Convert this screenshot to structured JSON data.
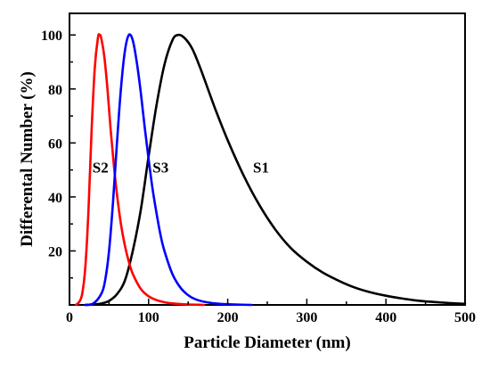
{
  "chart_data": {
    "type": "line",
    "xlabel": "Particle Diameter (nm)",
    "ylabel": "Differental Number (%)",
    "xlim": [
      0,
      500
    ],
    "ylim": [
      0,
      108
    ],
    "x_ticks": [
      0,
      100,
      200,
      300,
      400,
      500
    ],
    "y_ticks": [
      20,
      40,
      60,
      80,
      100
    ],
    "grid": false,
    "legend": "none",
    "series": [
      {
        "name": "S1",
        "color": "#000000",
        "x": [
          20,
          30,
          40,
          50,
          60,
          70,
          80,
          90,
          100,
          110,
          120,
          130,
          137,
          145,
          155,
          165,
          175,
          185,
          200,
          220,
          240,
          260,
          280,
          300,
          320,
          340,
          360,
          380,
          400,
          420,
          440,
          460,
          480,
          500
        ],
        "y": [
          0,
          0.2,
          0.5,
          1.5,
          4,
          9,
          20,
          35,
          55,
          74,
          89,
          98,
          100,
          99,
          95,
          88,
          80,
          72,
          61,
          48,
          37,
          28,
          21,
          16,
          12,
          9,
          6.5,
          4.7,
          3.4,
          2.4,
          1.6,
          1.1,
          0.7,
          0.4
        ],
        "label_at": [
          232,
          51
        ]
      },
      {
        "name": "S2",
        "color": "#ff0000",
        "x": [
          8,
          12,
          16,
          20,
          24,
          28,
          32,
          36,
          38,
          40,
          44,
          48,
          52,
          56,
          60,
          65,
          70,
          75,
          80,
          90,
          100,
          110,
          120,
          130,
          140,
          150,
          160,
          170
        ],
        "y": [
          0,
          1,
          4,
          14,
          35,
          65,
          88,
          99,
          100,
          99,
          92,
          80,
          65,
          52,
          41,
          30,
          22,
          16,
          11.5,
          6,
          3.2,
          1.8,
          1.0,
          0.55,
          0.3,
          0.15,
          0.08,
          0
        ],
        "label_at": [
          29,
          51
        ]
      },
      {
        "name": "S3",
        "color": "#0000ff",
        "x": [
          20,
          30,
          40,
          45,
          50,
          55,
          60,
          65,
          70,
          75,
          80,
          85,
          90,
          95,
          100,
          105,
          110,
          115,
          120,
          130,
          140,
          150,
          160,
          175,
          190,
          210,
          230
        ],
        "y": [
          0,
          0.5,
          4,
          9,
          20,
          38,
          60,
          80,
          94,
          100,
          98,
          90,
          79,
          66,
          54,
          43,
          34,
          26,
          20,
          11.5,
          6.5,
          3.6,
          2.0,
          0.9,
          0.4,
          0.15,
          0
        ],
        "label_at": [
          105,
          51
        ]
      }
    ]
  }
}
